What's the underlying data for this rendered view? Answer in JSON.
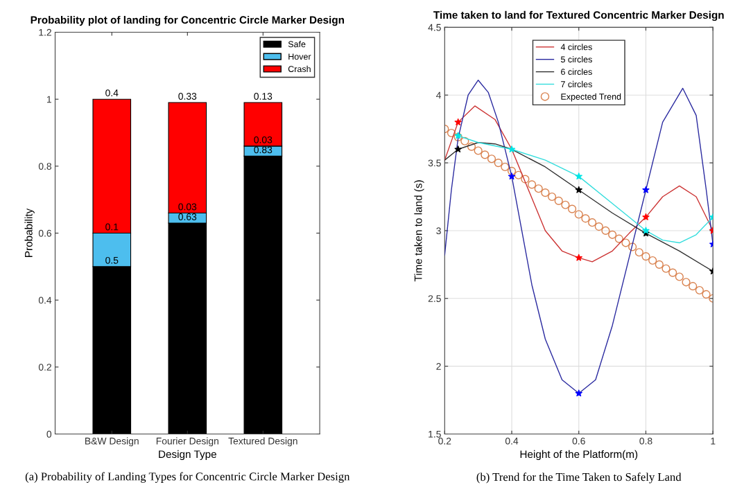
{
  "chart_data": [
    {
      "type": "bar",
      "title": "Probability plot of landing for Concentric Circle Marker Design",
      "xlabel": "Design Type",
      "ylabel": "Probability",
      "categories": [
        "B&W Design",
        "Fourier Design",
        "Textured Design"
      ],
      "stacked": true,
      "data_labels": true,
      "series": [
        {
          "name": "Safe",
          "color": "#000000",
          "values": [
            0.5,
            0.63,
            0.83
          ]
        },
        {
          "name": "Hover",
          "color": "#4dbeee",
          "values": [
            0.1,
            0.03,
            0.03
          ]
        },
        {
          "name": "Crash",
          "color": "#ff0000",
          "values": [
            0.4,
            0.33,
            0.13
          ]
        }
      ],
      "ylim": [
        0,
        1.2
      ],
      "yticks": [
        0,
        0.2,
        0.4,
        0.6,
        0.8,
        1,
        1.2
      ],
      "grid": false,
      "legend": "top right",
      "annotations": [
        "(a) Probability of Landing Types for Concentric Circle Marker Design"
      ]
    },
    {
      "type": "line",
      "title": "Time taken to land for Textured Concentric Marker Design",
      "xlabel": "Height of the Platform(m)",
      "ylabel": "Time taken to land (s)",
      "series": [
        {
          "name": "4 circles",
          "type": "line",
          "color": "#cc3333",
          "marker": "none",
          "x": [
            0.2,
            0.24,
            0.29,
            0.35,
            0.4,
            0.45,
            0.5,
            0.55,
            0.6,
            0.64,
            0.7,
            0.75,
            0.8,
            0.85,
            0.9,
            0.95,
            1.0
          ],
          "values": [
            3.52,
            3.8,
            3.92,
            3.82,
            3.6,
            3.3,
            3.0,
            2.85,
            2.8,
            2.77,
            2.85,
            2.98,
            3.1,
            3.25,
            3.33,
            3.25,
            3.0
          ]
        },
        {
          "name": "5 circles",
          "type": "line",
          "color": "#2b2ba0",
          "marker": "none",
          "x": [
            0.2,
            0.22,
            0.24,
            0.27,
            0.3,
            0.33,
            0.36,
            0.4,
            0.43,
            0.46,
            0.5,
            0.55,
            0.6,
            0.65,
            0.7,
            0.75,
            0.8,
            0.85,
            0.91,
            0.95,
            0.98,
            1.0
          ],
          "values": [
            2.82,
            3.3,
            3.68,
            4.0,
            4.11,
            4.02,
            3.8,
            3.4,
            3.0,
            2.6,
            2.2,
            1.9,
            1.8,
            1.9,
            2.3,
            2.8,
            3.3,
            3.8,
            4.05,
            3.85,
            3.3,
            2.9
          ]
        },
        {
          "name": "6 circles",
          "type": "line",
          "color": "#303030",
          "marker": "none",
          "x": [
            0.2,
            0.24,
            0.3,
            0.35,
            0.4,
            0.5,
            0.6,
            0.7,
            0.8,
            0.9,
            1.0
          ],
          "values": [
            3.52,
            3.6,
            3.65,
            3.64,
            3.6,
            3.47,
            3.3,
            3.13,
            2.98,
            2.85,
            2.7
          ]
        },
        {
          "name": "7 circles",
          "type": "line",
          "color": "#33dddd",
          "marker": "none",
          "x": [
            0.24,
            0.3,
            0.4,
            0.5,
            0.6,
            0.7,
            0.8,
            0.85,
            0.9,
            0.95,
            1.0
          ],
          "values": [
            3.7,
            3.65,
            3.6,
            3.52,
            3.4,
            3.2,
            3.0,
            2.93,
            2.91,
            2.97,
            3.1
          ]
        },
        {
          "type": "scatter",
          "color": "#ff0000",
          "marker": "star",
          "x": [
            0.24,
            0.6,
            0.8,
            1.0
          ],
          "values": [
            3.8,
            2.8,
            3.1,
            3.0
          ]
        },
        {
          "type": "scatter",
          "color": "#0000ff",
          "marker": "star",
          "x": [
            0.4,
            0.6,
            0.8,
            1.0
          ],
          "values": [
            3.4,
            1.8,
            3.3,
            2.9
          ]
        },
        {
          "type": "scatter",
          "color": "#000000",
          "marker": "star",
          "x": [
            0.24,
            0.6,
            0.8,
            1.0
          ],
          "values": [
            3.6,
            3.3,
            2.98,
            2.7
          ]
        },
        {
          "type": "scatter",
          "color": "#00e5e5",
          "marker": "star",
          "x": [
            0.24,
            0.4,
            0.6,
            0.8,
            1.0
          ],
          "values": [
            3.7,
            3.6,
            3.4,
            3.0,
            3.1
          ]
        },
        {
          "name": "Expected Trend",
          "type": "scatter",
          "color": "#d9824f",
          "marker": "circle",
          "x": [
            0.2,
            0.22,
            0.24,
            0.26,
            0.28,
            0.3,
            0.32,
            0.34,
            0.36,
            0.38,
            0.4,
            0.42,
            0.44,
            0.46,
            0.48,
            0.5,
            0.52,
            0.54,
            0.56,
            0.58,
            0.6,
            0.62,
            0.64,
            0.66,
            0.68,
            0.7,
            0.72,
            0.74,
            0.76,
            0.78,
            0.8,
            0.82,
            0.84,
            0.86,
            0.88,
            0.9,
            0.92,
            0.94,
            0.96,
            0.98,
            1.0
          ],
          "values": [
            3.75,
            3.72,
            3.69,
            3.66,
            3.62,
            3.59,
            3.56,
            3.53,
            3.5,
            3.47,
            3.44,
            3.41,
            3.38,
            3.34,
            3.31,
            3.28,
            3.25,
            3.22,
            3.19,
            3.16,
            3.12,
            3.09,
            3.06,
            3.03,
            3.0,
            2.97,
            2.94,
            2.91,
            2.88,
            2.84,
            2.81,
            2.78,
            2.75,
            2.72,
            2.69,
            2.66,
            2.62,
            2.59,
            2.56,
            2.53,
            2.5
          ]
        }
      ],
      "xlim": [
        0.2,
        1
      ],
      "xticks": [
        0.2,
        0.4,
        0.6,
        0.8,
        1
      ],
      "ylim": [
        1.5,
        4.5
      ],
      "yticks": [
        1.5,
        2,
        2.5,
        3,
        3.5,
        4,
        4.5
      ],
      "grid": true,
      "legend": "top",
      "annotations": [
        "(b) Trend for the Time Taken to Safely Land"
      ]
    }
  ]
}
